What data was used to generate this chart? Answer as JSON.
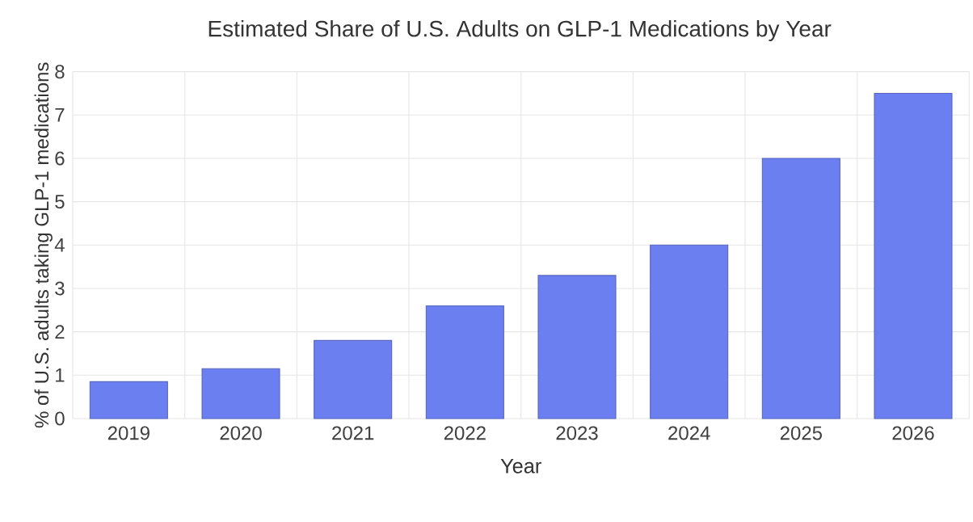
{
  "chart_data": {
    "type": "bar",
    "title": "Estimated Share of U.S. Adults on GLP-1 Medications by Year",
    "xlabel": "Year",
    "ylabel": "% of U.S. adults taking GLP-1 medications",
    "categories": [
      "2019",
      "2020",
      "2021",
      "2022",
      "2023",
      "2024",
      "2025",
      "2026"
    ],
    "values": [
      0.85,
      1.15,
      1.8,
      2.6,
      3.3,
      4.0,
      6.0,
      7.5
    ],
    "color": "#6b7ff0",
    "ylim": [
      0,
      8
    ],
    "yticks": [
      0,
      1,
      2,
      3,
      4,
      5,
      6,
      7,
      8
    ],
    "grid": true
  }
}
